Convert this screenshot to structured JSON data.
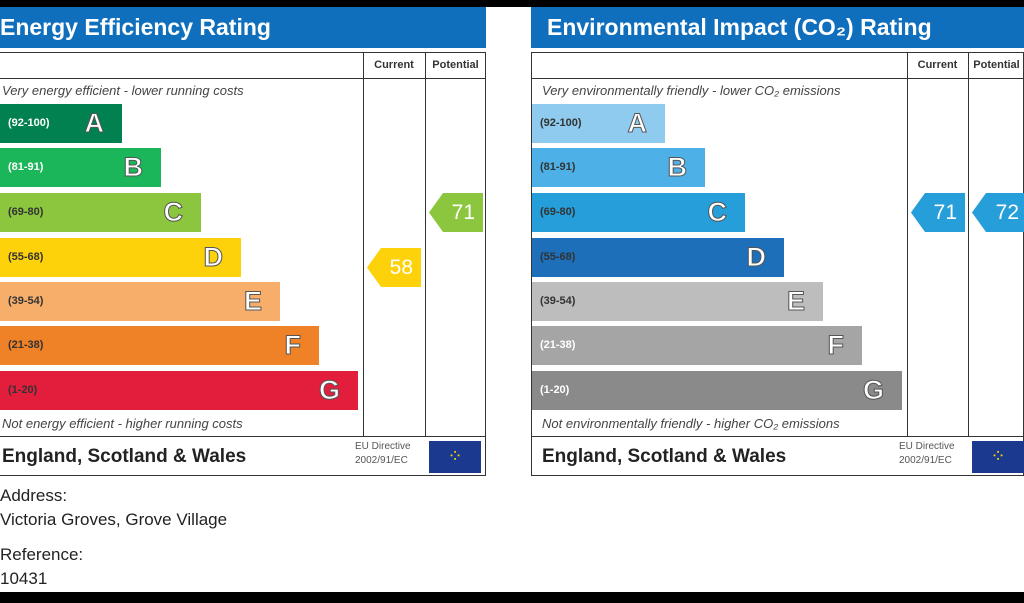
{
  "chart_data": [
    {
      "type": "bar",
      "title": "Energy Efficiency Rating",
      "columns": [
        "Current",
        "Potential"
      ],
      "top_caption": "Very energy efficient - lower running costs",
      "bottom_caption": "Not energy efficient - higher running costs",
      "bands": [
        {
          "range": "(92-100)",
          "letter": "A",
          "color": "#00814f",
          "text": "#fff"
        },
        {
          "range": "(81-91)",
          "letter": "B",
          "color": "#1bb55a",
          "text": "#fff"
        },
        {
          "range": "(69-80)",
          "letter": "C",
          "color": "#8cc63f",
          "text": "#333"
        },
        {
          "range": "(55-68)",
          "letter": "D",
          "color": "#fdd20a",
          "text": "#333"
        },
        {
          "range": "(39-54)",
          "letter": "E",
          "color": "#f7ae6b",
          "text": "#333"
        },
        {
          "range": "(21-38)",
          "letter": "F",
          "color": "#ef8226",
          "text": "#333"
        },
        {
          "range": "(1-20)",
          "letter": "G",
          "color": "#e31d3c",
          "text": "#333"
        }
      ],
      "current": {
        "value": "58",
        "band": "D",
        "color": "#fdd20a"
      },
      "potential": {
        "value": "71",
        "band": "C",
        "color": "#8cc63f"
      },
      "footer": "England, Scotland & Wales",
      "directive": [
        "EU Directive",
        "2002/91/EC"
      ]
    },
    {
      "type": "bar",
      "title": "Environmental Impact (CO₂) Rating",
      "columns": [
        "Current",
        "Potential"
      ],
      "top_caption": "Very environmentally friendly - lower CO₂ emissions",
      "bottom_caption": "Not environmentally friendly - higher CO₂ emissions",
      "bands": [
        {
          "range": "(92-100)",
          "letter": "A",
          "color": "#8ecbee",
          "text": "#333"
        },
        {
          "range": "(81-91)",
          "letter": "B",
          "color": "#4db0e6",
          "text": "#333"
        },
        {
          "range": "(69-80)",
          "letter": "C",
          "color": "#259ed9",
          "text": "#333"
        },
        {
          "range": "(55-68)",
          "letter": "D",
          "color": "#1c6fb8",
          "text": "#333"
        },
        {
          "range": "(39-54)",
          "letter": "E",
          "color": "#bdbdbd",
          "text": "#333"
        },
        {
          "range": "(21-38)",
          "letter": "F",
          "color": "#a5a5a5",
          "text": "#fff"
        },
        {
          "range": "(1-20)",
          "letter": "G",
          "color": "#8a8a8a",
          "text": "#fff"
        }
      ],
      "current": {
        "value": "71",
        "band": "C",
        "color": "#259ed9"
      },
      "potential": {
        "value": "72",
        "band": "C",
        "color": "#259ed9"
      },
      "footer": "England, Scotland & Wales",
      "directive": [
        "EU Directive",
        "2002/91/EC"
      ]
    }
  ],
  "info": {
    "address_label": "Address:",
    "address": "Victoria Groves, Grove Village",
    "reference_label": "Reference:",
    "reference": "10431"
  }
}
